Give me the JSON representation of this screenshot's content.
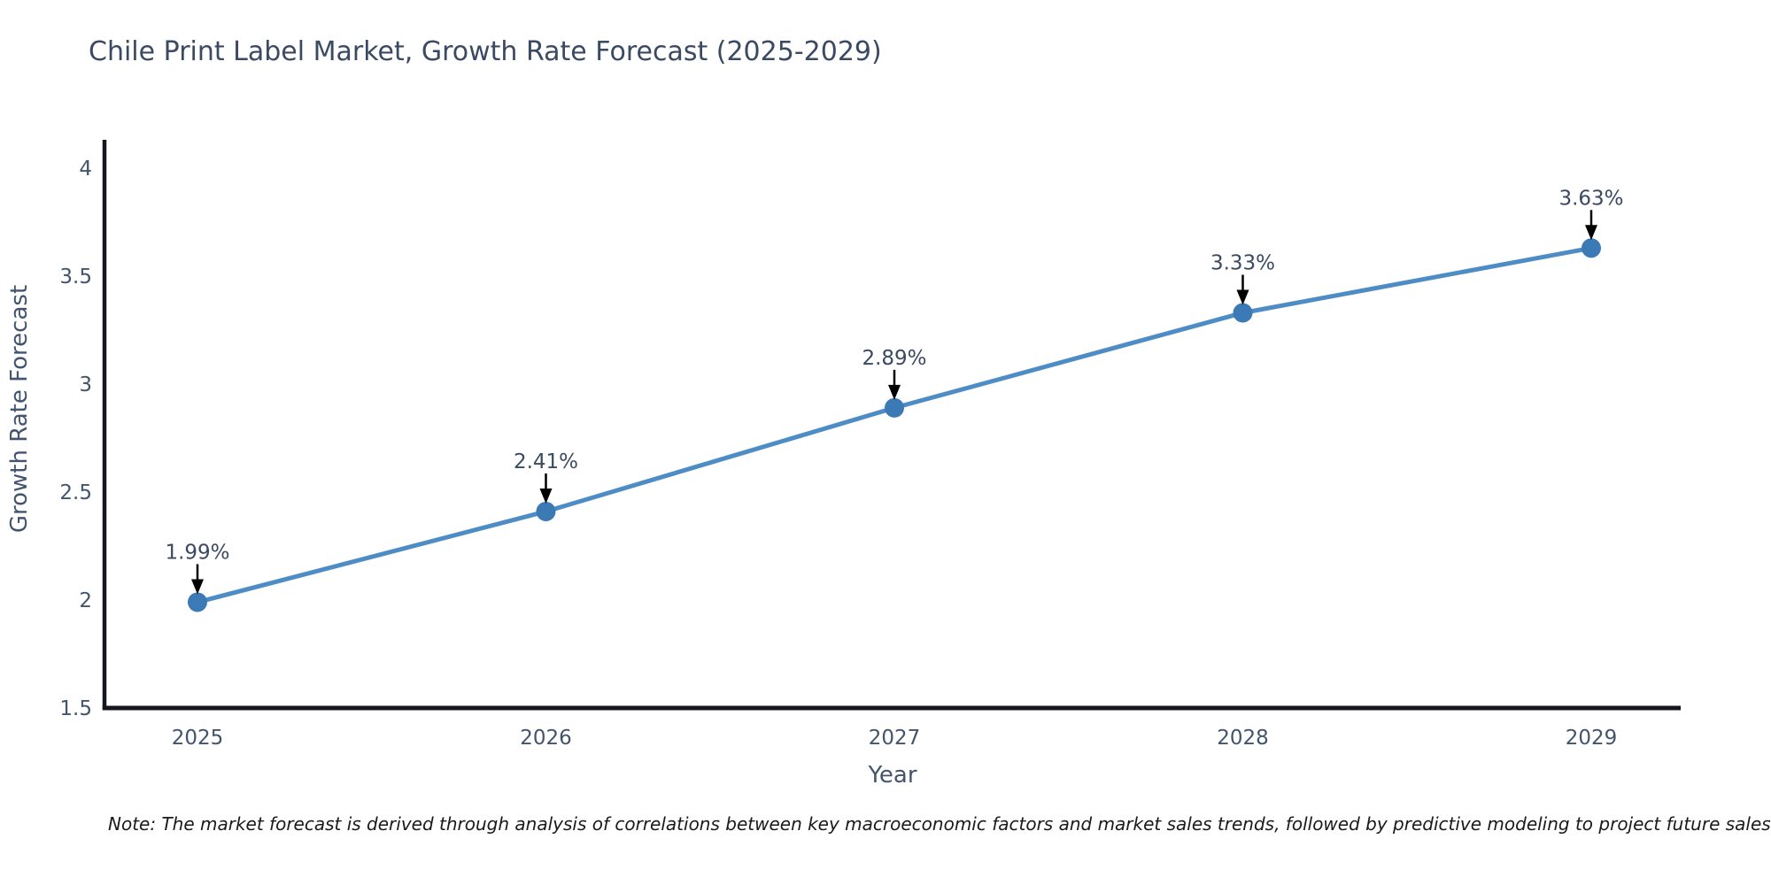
{
  "note": "Note: The market forecast is derived through analysis of correlations between key macroeconomic factors and market sales trends, followed by predictive modeling to project future sales",
  "chart_data": {
    "type": "line",
    "title": "Chile Print Label Market, Growth Rate Forecast (2025-2029)",
    "xlabel": "Year",
    "ylabel": "Growth Rate Forecast",
    "categories": [
      "2025",
      "2026",
      "2027",
      "2028",
      "2029"
    ],
    "series": [
      {
        "name": "Growth Rate Forecast",
        "values": [
          1.99,
          2.41,
          2.89,
          3.33,
          3.63
        ]
      }
    ],
    "point_labels": [
      "1.99%",
      "2.41%",
      "2.89%",
      "3.33%",
      "3.63%"
    ],
    "yticks": [
      1.5,
      2,
      2.5,
      3,
      3.5,
      4
    ],
    "ylim": [
      1.5,
      4
    ],
    "grid": false,
    "legend_position": "none",
    "colors": {
      "line": "#4d8cc4",
      "marker": "#3c7ab5",
      "axis": "#16161d",
      "arrow": "#000000",
      "tick_text": "#42546e",
      "title_text": "#3b4a63"
    }
  }
}
